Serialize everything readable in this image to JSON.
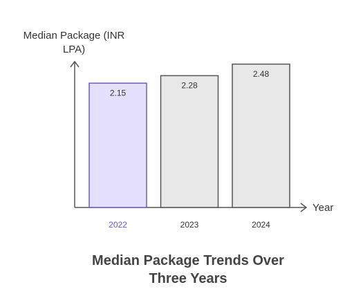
{
  "chart_data": {
    "type": "bar",
    "title": "Median Package Trends Over Three Years",
    "y_label": "Median Package (INR LPA)",
    "x_label": "Year",
    "categories": [
      "2022",
      "2023",
      "2024"
    ],
    "values": [
      2.15,
      2.28,
      2.48
    ],
    "colors": [
      "#e5e0fd",
      "#e8e8e8",
      "#e8e8e8"
    ],
    "stroke_colors": [
      "#6a5acd",
      "#555555",
      "#555555"
    ],
    "label_colors": [
      "#6a5acd",
      "#333333",
      "#333333"
    ],
    "ylim": [
      0,
      2.5
    ],
    "grid": false
  }
}
